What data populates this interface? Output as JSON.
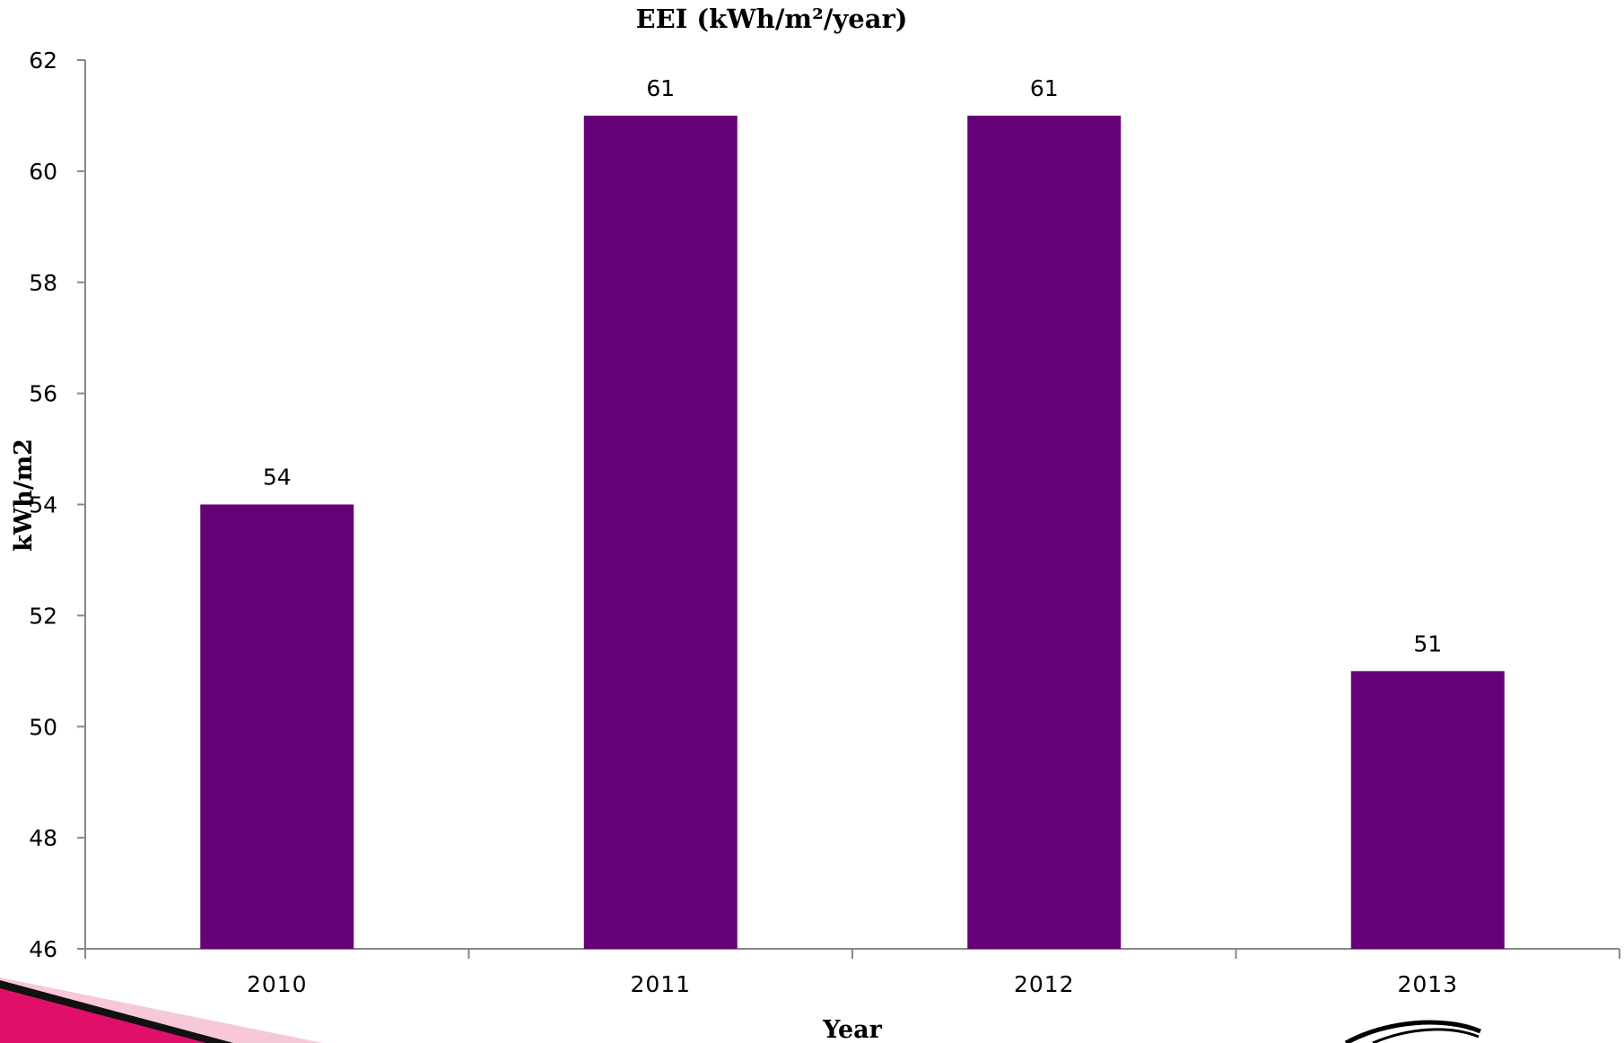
{
  "colors": {
    "bar": "#660077",
    "axis": "#888888",
    "text": "#000000",
    "accent_pink": "#e0106a",
    "accent_pink_light": "#f7c7da",
    "accent_black": "#111111"
  },
  "decorations": {
    "bottom_left": "pink-black-ribbon",
    "bottom_right": "swoosh-logo"
  },
  "chart_data": {
    "type": "bar",
    "title": "EEI (kWh/m²/year)",
    "xlabel": "Year",
    "ylabel": "kWh/m2",
    "categories": [
      "2010",
      "2011",
      "2012",
      "2013"
    ],
    "values": [
      54,
      61,
      61,
      51
    ],
    "data_labels": [
      "54",
      "61",
      "61",
      "51"
    ],
    "ylim": [
      46,
      62
    ],
    "yticks": [
      "46",
      "48",
      "50",
      "52",
      "54",
      "56",
      "58",
      "60",
      "62"
    ],
    "grid": false,
    "legend": "none"
  }
}
